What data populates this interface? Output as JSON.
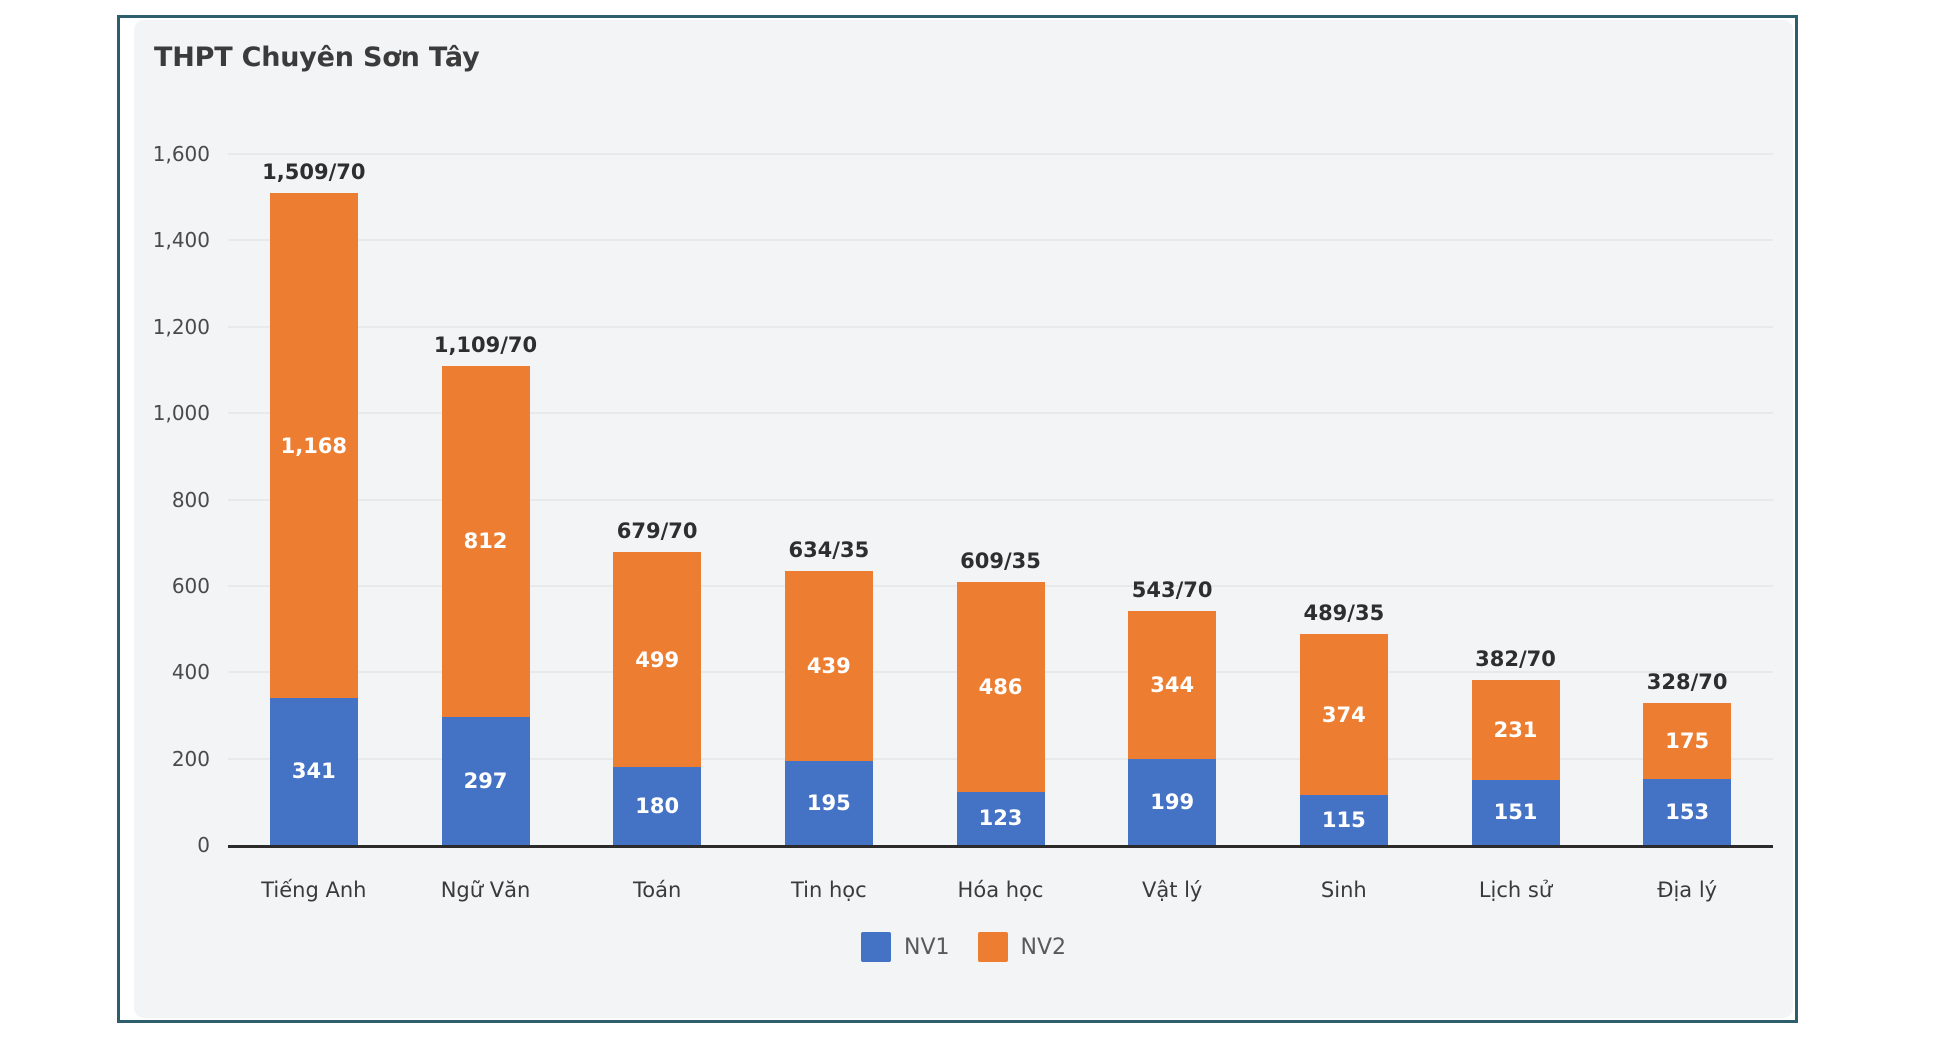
{
  "frame": {
    "border_color": "#2e5d6e",
    "card_background": "#f3f4f6"
  },
  "chart_data": {
    "type": "bar",
    "stacked": true,
    "title": "THPT Chuyên Sơn Tây",
    "categories": [
      "Tiếng Anh",
      "Ngữ Văn",
      "Toán",
      "Tin học",
      "Hóa học",
      "Vật lý",
      "Sinh",
      "Lịch sử",
      "Địa lý"
    ],
    "series": [
      {
        "name": "NV1",
        "color": "#4472C4",
        "values": [
          341,
          297,
          180,
          195,
          123,
          199,
          115,
          151,
          153
        ]
      },
      {
        "name": "NV2",
        "color": "#ED7D31",
        "values": [
          1168,
          812,
          499,
          439,
          486,
          344,
          374,
          231,
          175
        ]
      }
    ],
    "totals": [
      1509,
      1109,
      679,
      634,
      609,
      543,
      489,
      382,
      328
    ],
    "total_labels": [
      "1,509/70",
      "1,109/70",
      "679/70",
      "634/35",
      "609/35",
      "543/70",
      "489/35",
      "382/70",
      "328/70"
    ],
    "segment_labels": {
      "NV1": [
        "341",
        "297",
        "180",
        "195",
        "123",
        "199",
        "115",
        "151",
        "153"
      ],
      "NV2": [
        "1,168",
        "812",
        "499",
        "439",
        "486",
        "344",
        "374",
        "231",
        "175"
      ]
    },
    "y_axis": {
      "min": 0,
      "max": 1600,
      "step": 200,
      "tick_labels": [
        "0",
        "200",
        "400",
        "600",
        "800",
        "1,000",
        "1,200",
        "1,400",
        "1,600"
      ]
    },
    "grid": true,
    "legend_position": "bottom",
    "xlabel": "",
    "ylabel": ""
  }
}
